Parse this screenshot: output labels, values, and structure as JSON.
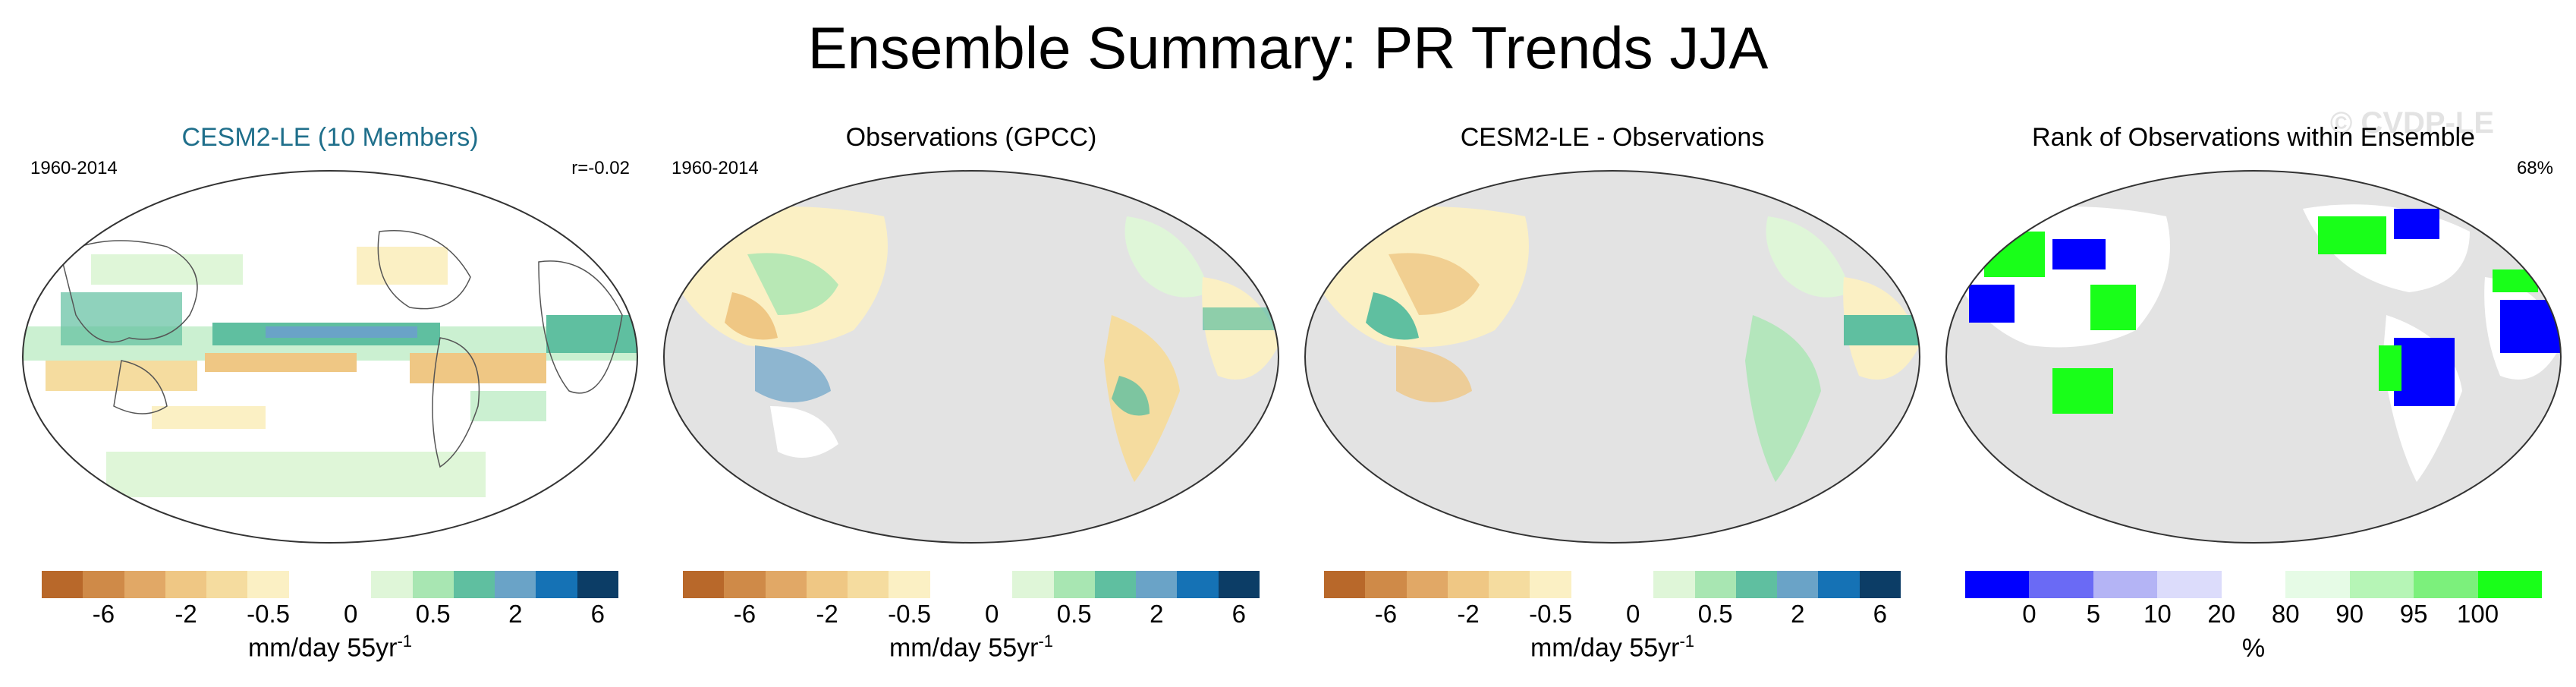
{
  "title": "Ensemble Summary: PR Trends JJA",
  "watermark": "© CVDP-LE",
  "panels": [
    {
      "title": "CESM2-LE (10 Members)",
      "title_color": "#1f6f8b",
      "left_label": "1960-2014",
      "right_label": "r=-0.02"
    },
    {
      "title": "Observations (GPCC)",
      "title_color": "#000000",
      "left_label": "1960-2014",
      "right_label": ""
    },
    {
      "title": "CESM2-LE - Observations",
      "title_color": "#000000",
      "left_label": "",
      "right_label": ""
    },
    {
      "title": "Rank of Observations within Ensemble",
      "title_color": "#000000",
      "left_label": "",
      "right_label": "68%"
    }
  ],
  "trend_colorbar": {
    "colors": [
      "#b8682a",
      "#cf8a48",
      "#e1a866",
      "#efc784",
      "#f5dc9f",
      "#fbf0c4",
      "#ffffff",
      "#ffffff",
      "#dff6d8",
      "#a8e6b2",
      "#5fbfa0",
      "#6aa3c7",
      "#1572b5",
      "#0c3d66"
    ],
    "tick_labels": [
      "-6",
      "-2",
      "-0.5",
      "0",
      "0.5",
      "2",
      "6"
    ],
    "unit": "mm/day 55yr",
    "unit_sup": "-1"
  },
  "rank_colorbar": {
    "colors": [
      "#0000ff",
      "#6a6af5",
      "#b4b4f5",
      "#dcdcfb",
      "#ffffff",
      "#e6fbe6",
      "#b6f5b6",
      "#7cf07c",
      "#19ff19"
    ],
    "tick_labels": [
      "0",
      "5",
      "10",
      "20",
      "80",
      "90",
      "95",
      "100"
    ],
    "unit": "%"
  }
}
